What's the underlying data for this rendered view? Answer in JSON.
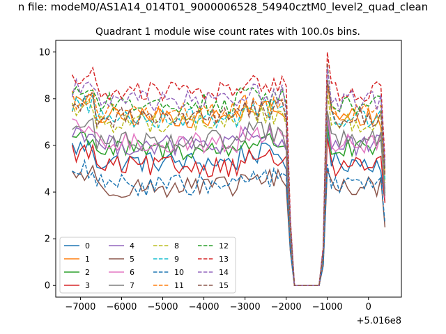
{
  "figure": {
    "suptitle": "n file: modeM0/AS1A14_014T01_9000006528_54940cztM0_level2_quad_clean"
  },
  "chart_data": {
    "type": "line",
    "title": "Quadrant 1 module wise count rates with 100.0s bins.",
    "xlabel": "",
    "ylabel": "",
    "x_offset_label": "+5.016e8",
    "xlim": [
      -7600,
      800
    ],
    "ylim": [
      -0.5,
      10.5
    ],
    "x_ticks": [
      -7000,
      -6000,
      -5000,
      -4000,
      -3000,
      -2000,
      -1000,
      0
    ],
    "x_tick_labels": [
      "−7000",
      "−6000",
      "−5000",
      "−4000",
      "−3000",
      "−2000",
      "−1000",
      "0"
    ],
    "y_ticks": [
      0,
      2,
      4,
      6,
      8,
      10
    ],
    "y_tick_labels": [
      "0",
      "2",
      "4",
      "6",
      "8",
      "10"
    ],
    "grid": false,
    "legend_location": "lower-left",
    "legend_columns": 4,
    "gap": {
      "x": [
        -1800,
        -1200
      ],
      "value": 0
    },
    "x_range": [
      -7200,
      450
    ],
    "bin": 100,
    "series": [
      {
        "name": "0",
        "color": "#1f77b4",
        "dash": false,
        "base": 5.3
      },
      {
        "name": "1",
        "color": "#ff7f0e",
        "dash": false,
        "base": 7.2
      },
      {
        "name": "2",
        "color": "#2ca02c",
        "dash": false,
        "base": 5.8
      },
      {
        "name": "3",
        "color": "#d62728",
        "dash": false,
        "base": 5.1
      },
      {
        "name": "4",
        "color": "#9467bd",
        "dash": false,
        "base": 6.0
      },
      {
        "name": "5",
        "color": "#8c564b",
        "dash": false,
        "base": 4.2
      },
      {
        "name": "6",
        "color": "#e377c2",
        "dash": false,
        "base": 6.1
      },
      {
        "name": "7",
        "color": "#7f7f7f",
        "dash": false,
        "base": 6.2
      },
      {
        "name": "8",
        "color": "#bcbd22",
        "dash": true,
        "base": 7.0
      },
      {
        "name": "9",
        "color": "#17becf",
        "dash": true,
        "base": 7.2
      },
      {
        "name": "10",
        "color": "#1f77b4",
        "dash": true,
        "base": 4.3
      },
      {
        "name": "11",
        "color": "#ff7f0e",
        "dash": true,
        "base": 7.4
      },
      {
        "name": "12",
        "color": "#2ca02c",
        "dash": true,
        "base": 7.8
      },
      {
        "name": "13",
        "color": "#d62728",
        "dash": true,
        "base": 8.3
      },
      {
        "name": "14",
        "color": "#9467bd",
        "dash": true,
        "base": 7.9
      },
      {
        "name": "15",
        "color": "#8c564b",
        "dash": true,
        "base": 7.2
      }
    ]
  }
}
